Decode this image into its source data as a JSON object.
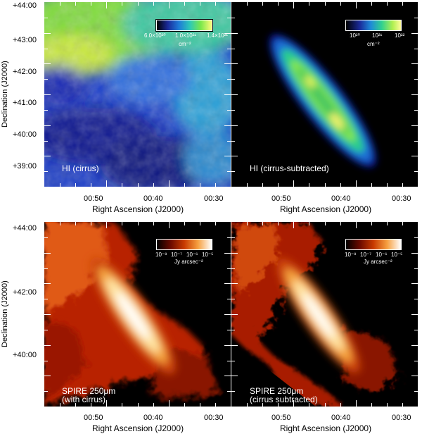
{
  "panels": {
    "hi_cirrus": {
      "label": "HI (cirrus)",
      "colorbar_ticks": [
        "6.0×10²⁰",
        "1.0×10²¹",
        "1.4×10²¹"
      ],
      "colorbar_unit": "cm⁻²"
    },
    "hi_sub": {
      "label": "HI (cirrus-subtracted)",
      "colorbar_ticks": [
        "10²⁰",
        "10²¹",
        "10²²"
      ],
      "colorbar_unit": "cm⁻²"
    },
    "spire_with": {
      "label_line1": "SPIRE 250μm",
      "label_line2": "(with cirrus)",
      "colorbar_ticks": [
        "10⁻⁸",
        "10⁻⁷",
        "10⁻⁶",
        "10⁻⁵"
      ],
      "colorbar_unit": "Jy arcsec⁻²"
    },
    "spire_sub": {
      "label_line1": "SPIRE 250μm",
      "label_line2": "(cirrus subtracted)",
      "colorbar_ticks": [
        "10⁻⁸",
        "10⁻⁷",
        "10⁻⁶",
        "10⁻⁵"
      ],
      "colorbar_unit": "Jy arcsec⁻²"
    }
  },
  "axes": {
    "ylabel": "Declination (J2000)",
    "xlabel": "Right Ascension (J2000)",
    "top_yticks": [
      "+44:00",
      "+43:00",
      "+42:00",
      "+41:00",
      "+40:00",
      "+39:00"
    ],
    "bottom_yticks": [
      "+44:00",
      "+42:00",
      "+40:00"
    ],
    "xticks": [
      "00:50",
      "00:40",
      "00:30"
    ]
  }
}
